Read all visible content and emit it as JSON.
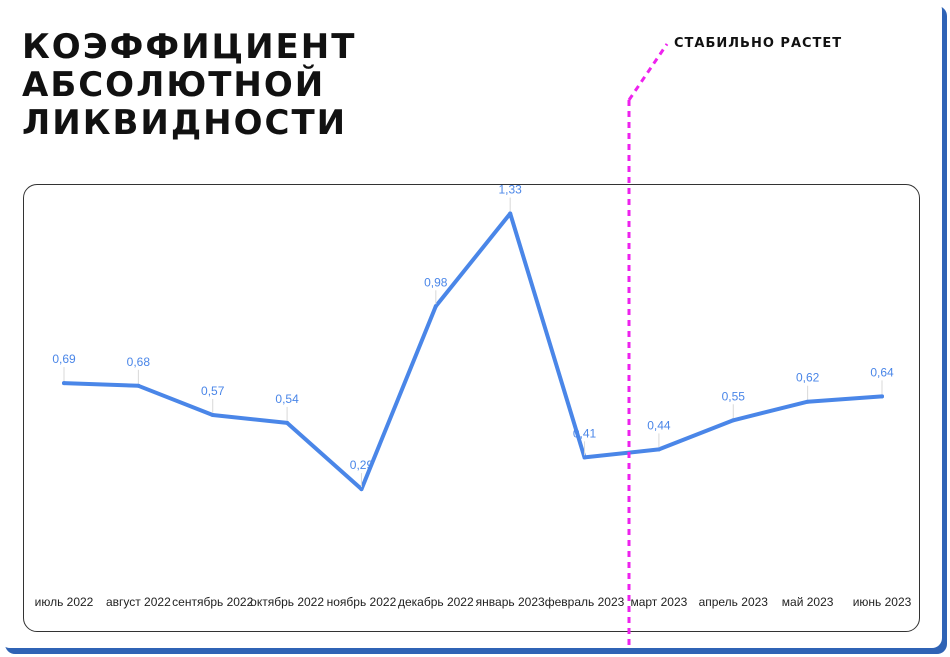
{
  "title": "КОЭФФИЦИЕНТ АБСОЛЮТНОЙ ЛИКВИДНОСТИ",
  "annotation": {
    "text": "СТАБИЛЬНО РАСТЕТ",
    "color": "#ee22ee"
  },
  "colors": {
    "line": "#4a86e8",
    "frame_shadow": "#2f63b5"
  },
  "chart_data": {
    "type": "line",
    "title": "КОЭФФИЦИЕНТ АБСОЛЮТНОЙ ЛИКВИДНОСТИ",
    "categories": [
      "июль 2022",
      "август 2022",
      "сентябрь 2022",
      "октябрь 2022",
      "ноябрь 2022",
      "декабрь 2022",
      "январь 2023",
      "февраль 2023",
      "март 2023",
      "апрель 2023",
      "май 2023",
      "июнь 2023"
    ],
    "values": [
      0.69,
      0.68,
      0.57,
      0.54,
      0.29,
      0.98,
      1.33,
      0.41,
      0.44,
      0.55,
      0.62,
      0.64
    ],
    "value_labels": [
      "0,69",
      "0,68",
      "0,57",
      "0,54",
      "0,29",
      "0,98",
      "1,33",
      "0,41",
      "0,44",
      "0,55",
      "0,62",
      "0,64"
    ],
    "ylim": [
      0,
      1.6
    ],
    "grid": false,
    "legend": "none",
    "xlabel": "",
    "ylabel": ""
  }
}
